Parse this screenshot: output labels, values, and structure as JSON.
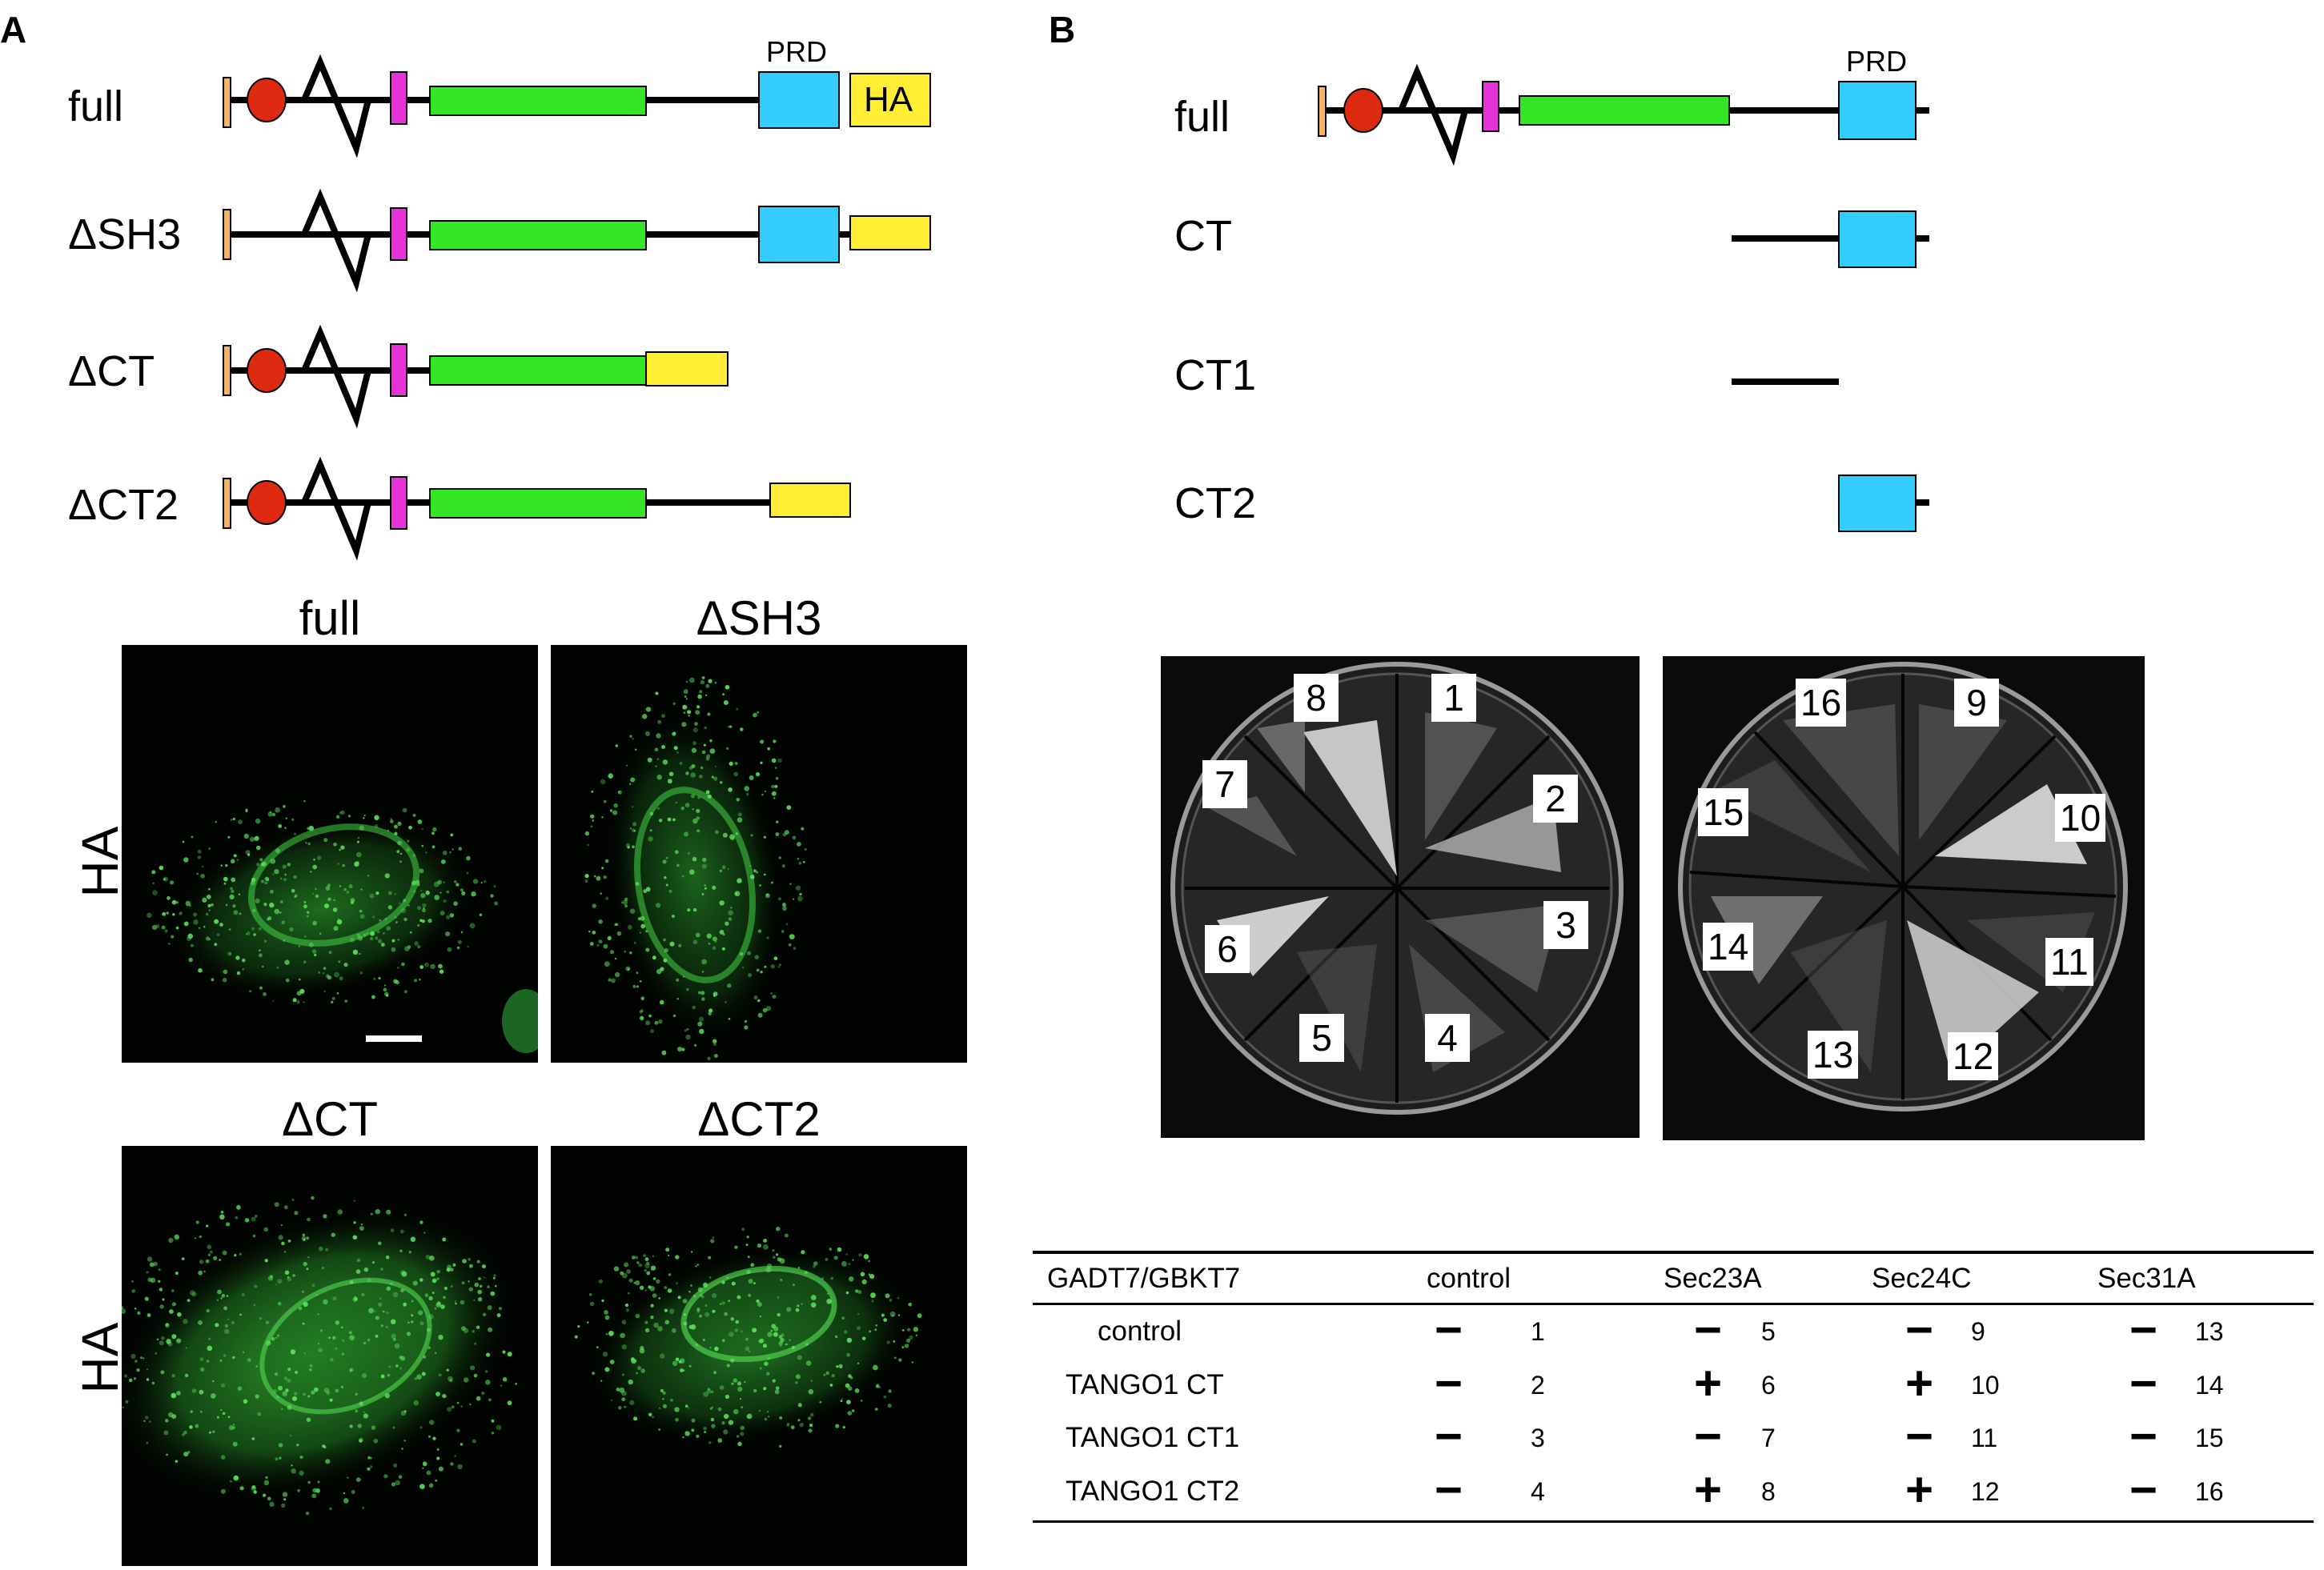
{
  "panel_a": {
    "letter": "A",
    "domain_labels": {
      "prd": "PRD",
      "ha": "HA"
    },
    "constructs": [
      {
        "label": "full"
      },
      {
        "label": "ΔSH3"
      },
      {
        "label": "ΔCT"
      },
      {
        "label": "ΔCT2"
      }
    ],
    "micrographs": [
      {
        "title": "full",
        "side_label": "HA"
      },
      {
        "title": "ΔSH3"
      },
      {
        "title": "ΔCT",
        "side_label": "HA"
      },
      {
        "title": "ΔCT2"
      }
    ]
  },
  "panel_b": {
    "letter": "B",
    "domain_labels": {
      "prd": "PRD"
    },
    "constructs": [
      {
        "label": "full"
      },
      {
        "label": "CT"
      },
      {
        "label": "CT1"
      },
      {
        "label": "CT2"
      }
    ],
    "plates": [
      {
        "sectors": [
          "1",
          "2",
          "3",
          "4",
          "5",
          "6",
          "7",
          "8"
        ]
      },
      {
        "sectors": [
          "9",
          "10",
          "11",
          "12",
          "13",
          "14",
          "15",
          "16"
        ]
      }
    ],
    "table": {
      "headers": [
        "GADT7/GBKT7",
        "control",
        "Sec23A",
        "Sec24C",
        "Sec31A"
      ],
      "rows": [
        {
          "label": "control",
          "cells": [
            {
              "sign": "−",
              "num": "1"
            },
            {
              "sign": "−",
              "num": "5"
            },
            {
              "sign": "−",
              "num": "9"
            },
            {
              "sign": "−",
              "num": "13"
            }
          ]
        },
        {
          "label": "TANGO1 CT",
          "cells": [
            {
              "sign": "−",
              "num": "2"
            },
            {
              "sign": "+",
              "num": "6"
            },
            {
              "sign": "+",
              "num": "10"
            },
            {
              "sign": "−",
              "num": "14"
            }
          ]
        },
        {
          "label": "TANGO1 CT1",
          "cells": [
            {
              "sign": "−",
              "num": "3"
            },
            {
              "sign": "−",
              "num": "7"
            },
            {
              "sign": "−",
              "num": "11"
            },
            {
              "sign": "−",
              "num": "15"
            }
          ]
        },
        {
          "label": "TANGO1 CT2",
          "cells": [
            {
              "sign": "−",
              "num": "4"
            },
            {
              "sign": "+",
              "num": "8"
            },
            {
              "sign": "+",
              "num": "12"
            },
            {
              "sign": "−",
              "num": "16"
            }
          ]
        }
      ]
    }
  },
  "colors": {
    "signal_peptide": "#f2b46a",
    "sh3": "#dd2a10",
    "tm": "#e632d9",
    "coiled_coil": "#33e626",
    "prd": "#33ccff",
    "ha_tag": "#ffee33",
    "micrograph_bg": "#010301",
    "fluorescence": "#36c23a"
  }
}
